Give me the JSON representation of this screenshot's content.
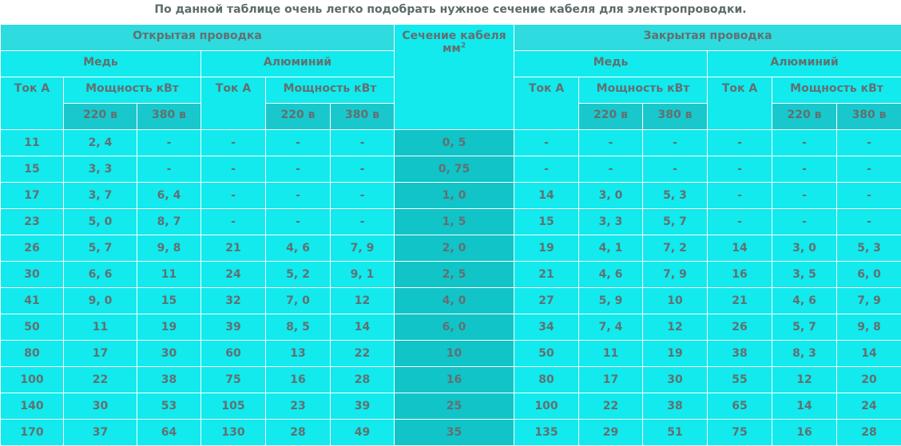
{
  "caption": "По данной таблице очень легко подобрать нужное сечение кабеля для электропроводки.",
  "headers": {
    "open_wiring": "Открытая проводка",
    "closed_wiring": "Закрытая проводка",
    "cross_section": "Сечение кабеля",
    "cross_section_unit": "мм",
    "cross_section_power": "2",
    "copper": "Медь",
    "aluminum": "Алюминий",
    "current": "Ток А",
    "power": "Мощность кВт",
    "v220": "220 в",
    "v380": "380 в"
  },
  "rows": [
    {
      "cells": [
        "11",
        "2, 4",
        "-",
        "-",
        "-",
        "-",
        "0, 5",
        "-",
        "-",
        "-",
        "-",
        "-",
        "-"
      ]
    },
    {
      "cells": [
        "15",
        "3, 3",
        "-",
        "-",
        "-",
        "-",
        "0, 75",
        "-",
        "-",
        "-",
        "-",
        "-",
        "-"
      ]
    },
    {
      "cells": [
        "17",
        "3, 7",
        "6, 4",
        "-",
        "-",
        "-",
        "1, 0",
        "14",
        "3, 0",
        "5, 3",
        "-",
        "-",
        "-"
      ]
    },
    {
      "cells": [
        "23",
        "5, 0",
        "8, 7",
        "-",
        "-",
        "-",
        "1, 5",
        "15",
        "3, 3",
        "5, 7",
        "-",
        "-",
        "-"
      ]
    },
    {
      "cells": [
        "26",
        "5, 7",
        "9, 8",
        "21",
        "4, 6",
        "7, 9",
        "2, 0",
        "19",
        "4, 1",
        "7, 2",
        "14",
        "3, 0",
        "5, 3"
      ]
    },
    {
      "cells": [
        "30",
        "6, 6",
        "11",
        "24",
        "5, 2",
        "9, 1",
        "2, 5",
        "21",
        "4, 6",
        "7, 9",
        "16",
        "3, 5",
        "6, 0"
      ]
    },
    {
      "cells": [
        "41",
        "9, 0",
        "15",
        "32",
        "7, 0",
        "12",
        "4, 0",
        "27",
        "5, 9",
        "10",
        "21",
        "4, 6",
        "7, 9"
      ]
    },
    {
      "cells": [
        "50",
        "11",
        "19",
        "39",
        "8, 5",
        "14",
        "6, 0",
        "34",
        "7, 4",
        "12",
        "26",
        "5, 7",
        "9, 8"
      ]
    },
    {
      "cells": [
        "80",
        "17",
        "30",
        "60",
        "13",
        "22",
        "10",
        "50",
        "11",
        "19",
        "38",
        "8, 3",
        "14"
      ]
    },
    {
      "cells": [
        "100",
        "22",
        "38",
        "75",
        "16",
        "28",
        "16",
        "80",
        "17",
        "30",
        "55",
        "12",
        "20"
      ]
    },
    {
      "cells": [
        "140",
        "30",
        "53",
        "105",
        "23",
        "39",
        "25",
        "100",
        "22",
        "38",
        "65",
        "14",
        "24"
      ]
    },
    {
      "cells": [
        "170",
        "37",
        "64",
        "130",
        "28",
        "49",
        "35",
        "135",
        "29",
        "51",
        "75",
        "16",
        "28"
      ]
    }
  ]
}
